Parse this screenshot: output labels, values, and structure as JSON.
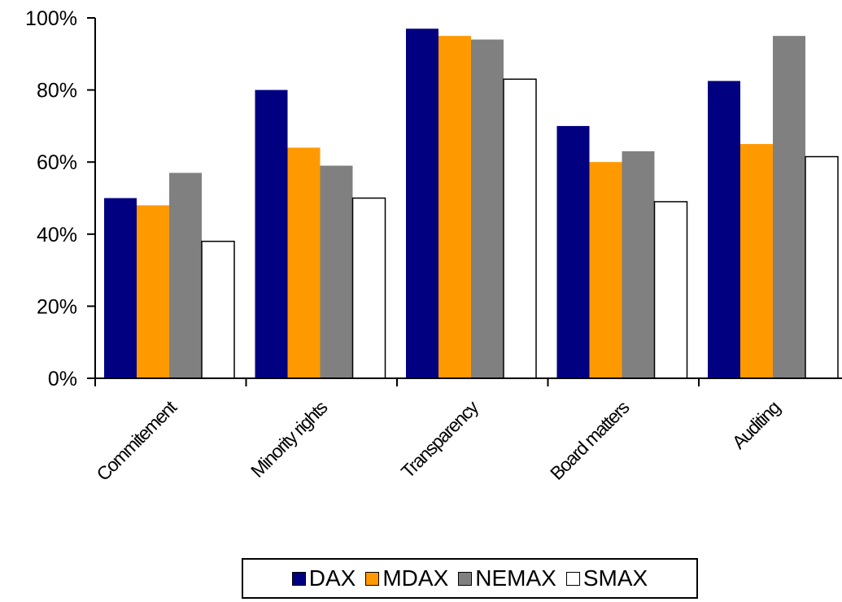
{
  "chart_data": {
    "type": "bar",
    "categories": [
      "Commitement",
      "Minority rights",
      "Transparency",
      "Board matters",
      "Auditing"
    ],
    "series": [
      {
        "name": "DAX",
        "color": "#000080",
        "values": [
          50,
          80,
          97,
          70,
          82.5
        ]
      },
      {
        "name": "MDAX",
        "color": "#FF9900",
        "values": [
          48,
          64,
          95,
          60,
          65
        ]
      },
      {
        "name": "NEMAX",
        "color": "#808080",
        "values": [
          57,
          59,
          94,
          63,
          95
        ]
      },
      {
        "name": "SMAX",
        "color": "#FFFFFF",
        "values": [
          38,
          50,
          83,
          49,
          61.5
        ]
      }
    ],
    "yticks": [
      "0%",
      "20%",
      "40%",
      "60%",
      "80%",
      "100%"
    ],
    "ylim": [
      0,
      100
    ],
    "grid": false,
    "legend_position": "bottom"
  }
}
